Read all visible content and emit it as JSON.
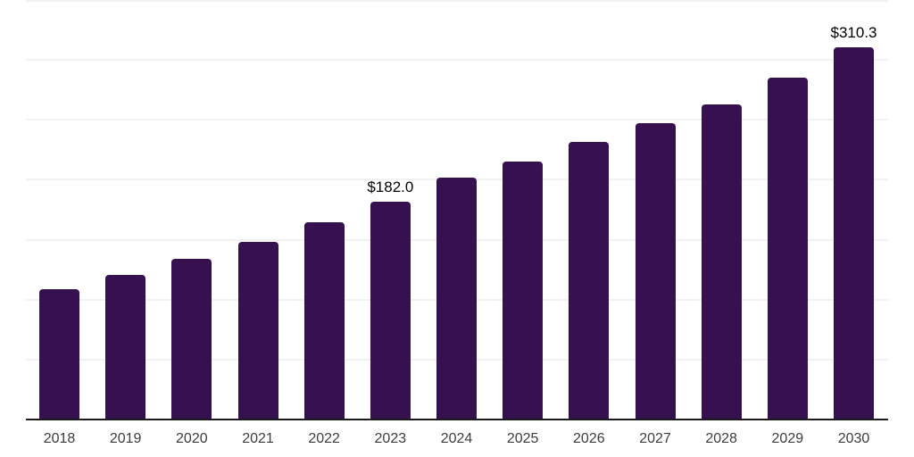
{
  "page": {
    "background_color": "#ffffff"
  },
  "chart_data": {
    "type": "bar",
    "title": "",
    "xlabel": "",
    "ylabel": "",
    "categories": [
      "2018",
      "2019",
      "2020",
      "2021",
      "2022",
      "2023",
      "2024",
      "2025",
      "2026",
      "2027",
      "2028",
      "2029",
      "2030"
    ],
    "values": [
      108.7,
      120.5,
      133.7,
      148.0,
      164.4,
      182.0,
      201.9,
      215.1,
      231.5,
      247.0,
      262.9,
      285.5,
      310.3
    ],
    "data_labels": [
      null,
      null,
      null,
      null,
      null,
      "$182.0",
      null,
      null,
      null,
      null,
      null,
      null,
      "$310.3"
    ],
    "ylim": [
      0,
      350
    ],
    "gridline_values": [
      50,
      100,
      150,
      200,
      250,
      300,
      350
    ],
    "grid": "on",
    "legend": "none",
    "y_axis_labels": "hidden",
    "bar_color": "#35114f",
    "grid_color": "#f1f1f1",
    "axis_color": "#1b1b1b",
    "tick_label_color": "#3d3d3d",
    "data_label_color": "#000000"
  }
}
